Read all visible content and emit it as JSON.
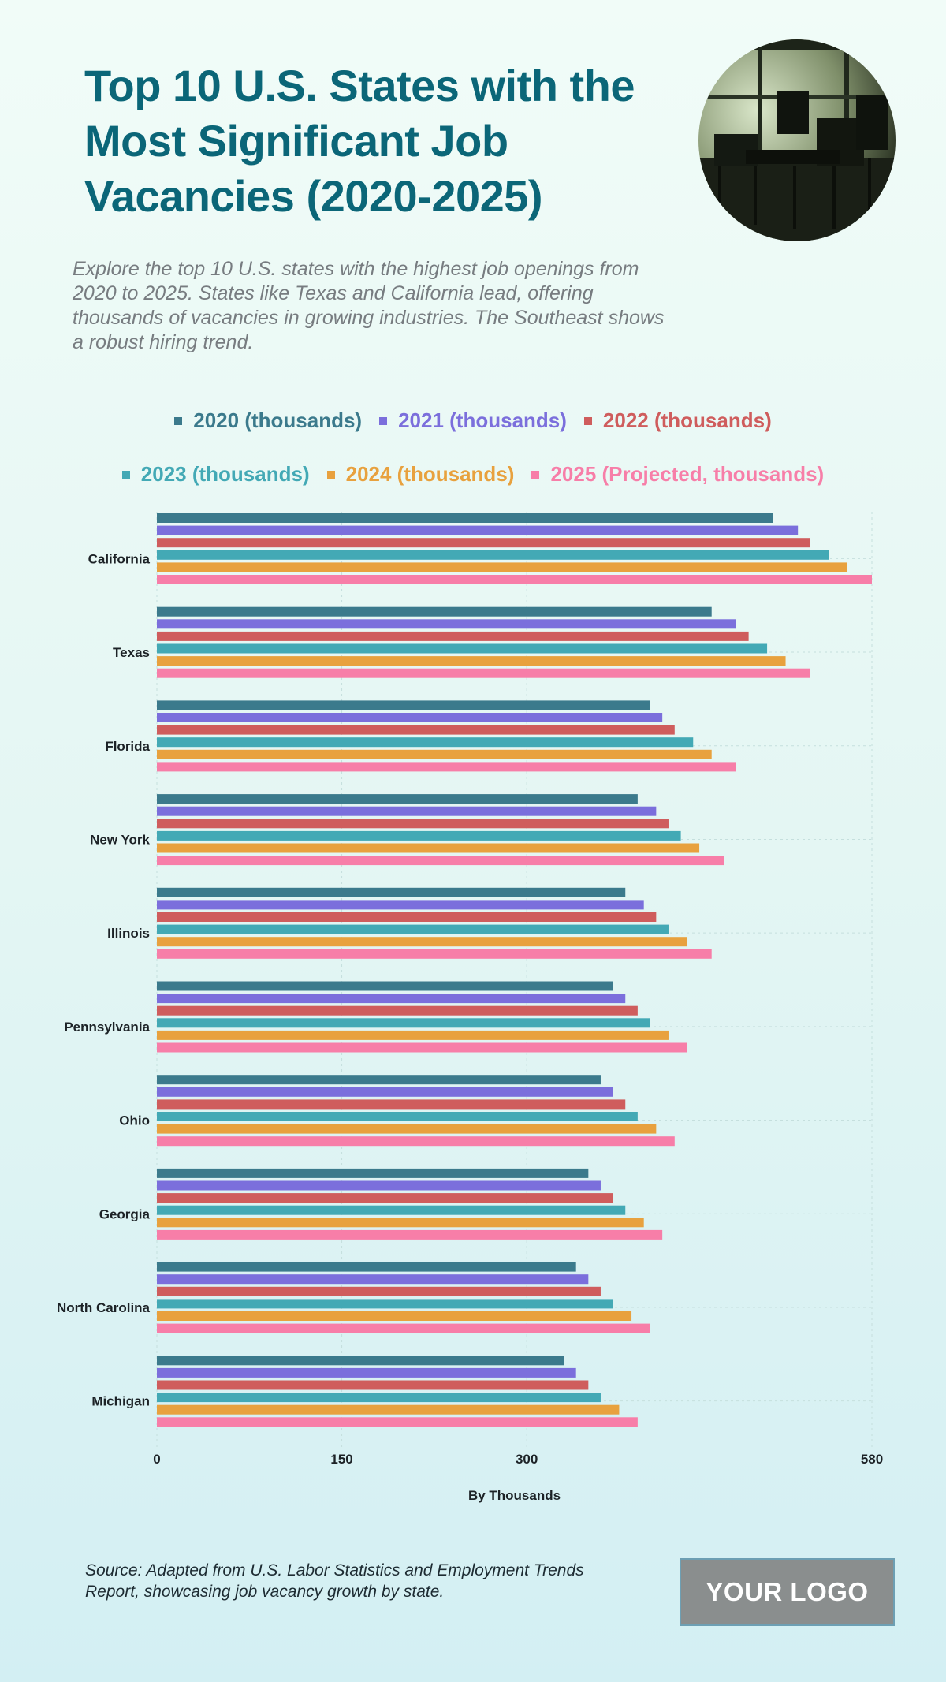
{
  "header": {
    "title": "Top 10 U.S. States with the Most Significant Job Vacancies (2020-2025)",
    "subtitle": "Explore the top 10 U.S. states with the highest job openings from 2020 to 2025. States like Texas and California lead, offering thousands of vacancies in growing industries. The Southeast shows a robust hiring trend."
  },
  "footer": {
    "source": "Source: Adapted from U.S. Labor Statistics and Employment Trends Report, showcasing job vacancy growth by state.",
    "logo_text": "YOUR LOGO"
  },
  "chart_data": {
    "type": "bar",
    "orientation": "horizontal",
    "categories": [
      "California",
      "Texas",
      "Florida",
      "New York",
      "Illinois",
      "Pennsylvania",
      "Ohio",
      "Georgia",
      "North Carolina",
      "Michigan"
    ],
    "series": [
      {
        "name": "2020 (thousands)",
        "color": "#3b7a8c",
        "values": [
          500,
          450,
          400,
          390,
          380,
          370,
          360,
          350,
          340,
          330
        ]
      },
      {
        "name": "2021 (thousands)",
        "color": "#7b6fdc",
        "values": [
          520,
          470,
          410,
          405,
          395,
          380,
          370,
          360,
          350,
          340
        ]
      },
      {
        "name": "2022 (thousands)",
        "color": "#cf5d5d",
        "values": [
          530,
          480,
          420,
          415,
          405,
          390,
          380,
          370,
          360,
          350
        ]
      },
      {
        "name": "2023 (thousands)",
        "color": "#43a9b5",
        "values": [
          545,
          495,
          435,
          425,
          415,
          400,
          390,
          380,
          370,
          360
        ]
      },
      {
        "name": "2024 (thousands)",
        "color": "#e8a13e",
        "values": [
          560,
          510,
          450,
          440,
          430,
          415,
          405,
          395,
          385,
          375
        ]
      },
      {
        "name": "2025 (Projected, thousands)",
        "color": "#f77ea8",
        "values": [
          580,
          530,
          470,
          460,
          450,
          430,
          420,
          410,
          400,
          390
        ]
      }
    ],
    "xlabel": "By Thousands",
    "ylabel": "",
    "xlim": [
      0,
      580
    ],
    "xticks": [
      0,
      150,
      300,
      580
    ],
    "grid": true,
    "legend_position": "top"
  }
}
